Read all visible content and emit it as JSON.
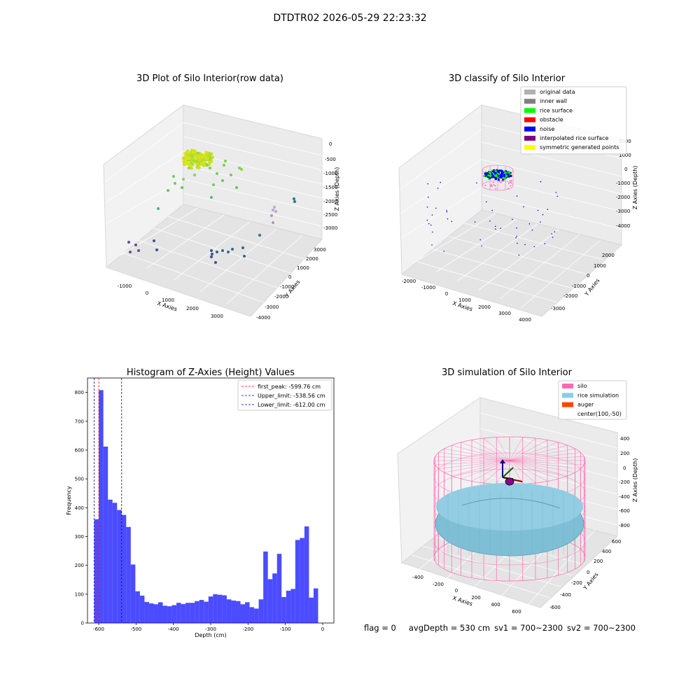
{
  "figure": {
    "title": "DTDTR02 2026-05-29 22:23:32",
    "status": {
      "flag": "flag = 0",
      "avg_depth": "avgDepth = 530 cm",
      "sv1": "sv1 = 700~2300",
      "sv2": "sv2 = 700~2300"
    }
  },
  "chart_data": [
    {
      "type": "scatter",
      "title": "3D Plot of Silo Interior(row data)",
      "xlabel": "X Axies",
      "ylabel": "Y Axies",
      "zlabel": "Z Axies (Depth)",
      "x_ticks": [
        "-1000",
        "0",
        "1000",
        "2000",
        "3000"
      ],
      "y_ticks": [
        "-4000",
        "-3000",
        "-2000",
        "-1000",
        "0",
        "1000",
        "2000",
        "3000"
      ],
      "z_ticks": [
        "0",
        "-500",
        "-1000",
        "-1500",
        "-2000",
        "-2500",
        "-3000"
      ],
      "colormap": "viridis-by-depth"
    },
    {
      "type": "scatter",
      "title": "3D classify of Silo Interior",
      "xlabel": "X Axies",
      "ylabel": "Y Axies",
      "zlabel": "Z Axies (Depth)",
      "x_ticks": [
        "-2000",
        "-1000",
        "0",
        "1000",
        "2000",
        "3000",
        "4000"
      ],
      "y_ticks": [
        "-3000",
        "-2000",
        "-1000",
        "0",
        "1000",
        "2000"
      ],
      "z_ticks": [
        "2000",
        "1000",
        "0",
        "-1000",
        "-2000",
        "-3000",
        "-4000"
      ],
      "legend": {
        "position": "top-right",
        "entries": [
          {
            "label": "original data",
            "color": "#b0b0b0"
          },
          {
            "label": "inner wall",
            "color": "#808080"
          },
          {
            "label": "rice surface",
            "color": "#00ff00"
          },
          {
            "label": "obstacle",
            "color": "#ff0000"
          },
          {
            "label": "noise",
            "color": "#0000ff"
          },
          {
            "label": "interpolated rice surface",
            "color": "#800080"
          },
          {
            "label": "symmetric generated points",
            "color": "#ffff00"
          }
        ]
      }
    },
    {
      "type": "bar",
      "title": "Histogram of Z-Axies (Height) Values",
      "xlabel": "Depth (cm)",
      "ylabel": "Frequency",
      "xlim": [
        -630,
        30
      ],
      "ylim": [
        0,
        850
      ],
      "x_ticks": [
        -600,
        -500,
        -400,
        -300,
        -200,
        -100,
        0
      ],
      "y_ticks": [
        0,
        100,
        200,
        300,
        400,
        500,
        600,
        700,
        800
      ],
      "bin_edges_start": -612,
      "bin_width": 12.24,
      "values": [
        360,
        808,
        612,
        428,
        417,
        392,
        375,
        333,
        203,
        110,
        95,
        73,
        68,
        65,
        72,
        60,
        58,
        62,
        70,
        66,
        70,
        70,
        76,
        80,
        74,
        92,
        100,
        98,
        96,
        82,
        78,
        76,
        65,
        72,
        55,
        50,
        82,
        248,
        152,
        172,
        240,
        90,
        112,
        118,
        288,
        295,
        335,
        88,
        120
      ],
      "bar_color": "#0000ff",
      "lines": [
        {
          "label": "first_peak: -599.76 cm",
          "value": -599.76,
          "color": "#ff0000"
        },
        {
          "label": "Upper_limit: -538.56 cm",
          "value": -538.56,
          "color": "#0000aa"
        },
        {
          "label": "Lower_limit: -612.00 cm",
          "value": -612.0,
          "color": "#0000aa"
        }
      ],
      "legend": {
        "position": "top-right"
      }
    },
    {
      "type": "surface",
      "title": "3D simulation of Silo Interior",
      "xlabel": "X Axies",
      "ylabel": "Y Axies",
      "zlabel": "Z Axies (Depth)",
      "x_ticks": [
        "-400",
        "-200",
        "0",
        "200",
        "400",
        "600"
      ],
      "y_ticks": [
        "-600",
        "-400",
        "-200",
        "0",
        "200",
        "400",
        "600"
      ],
      "z_ticks": [
        "400",
        "200",
        "0",
        "-200",
        "-400",
        "-600",
        "-800"
      ],
      "legend": {
        "position": "top-right",
        "entries": [
          {
            "label": "silo",
            "color": "#ff69b4"
          },
          {
            "label": "rice simulation",
            "color": "#87ceeb"
          },
          {
            "label": "auger",
            "color": "#ff4500"
          },
          {
            "label": "center(100,-50)",
            "color": ""
          }
        ]
      }
    }
  ]
}
